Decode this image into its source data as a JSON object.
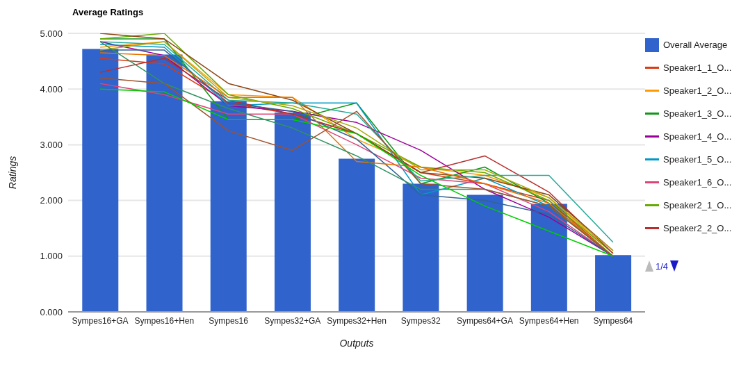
{
  "chart_data": {
    "type": "bar",
    "title": "Average Ratings",
    "xlabel": "Outputs",
    "ylabel": "Ratings",
    "categories": [
      "Sympes16+GA",
      "Sympes16+Hen",
      "Sympes16",
      "Sympes32+GA",
      "Sympes32+Hen",
      "Sympes32",
      "Sympes64+GA",
      "Sympes64+Hen",
      "Sympes64"
    ],
    "ylim": [
      0,
      5
    ],
    "yticks": [
      {
        "value": 0,
        "label": "0.000"
      },
      {
        "value": 1,
        "label": "1.000"
      },
      {
        "value": 2,
        "label": "2.000"
      },
      {
        "value": 3,
        "label": "3.000"
      },
      {
        "value": 4,
        "label": "4.000"
      },
      {
        "value": 5,
        "label": "5.000"
      }
    ],
    "grid": "y",
    "legend": "right",
    "annotations": [
      "1/4"
    ],
    "series": [
      {
        "name": "Overall Average",
        "color": "#3063cc",
        "values": [
          4.72,
          4.62,
          3.78,
          3.58,
          2.75,
          2.3,
          2.1,
          1.94,
          1.02
        ]
      },
      {
        "name": "Speaker1_1_O...",
        "type": "line",
        "color": "#dc3912",
        "values": [
          4.55,
          4.45,
          3.75,
          3.55,
          3.2,
          2.5,
          2.3,
          2.0,
          1.0
        ]
      },
      {
        "name": "Speaker1_2_O...",
        "type": "line",
        "color": "#ff9900",
        "values": [
          4.75,
          4.85,
          3.9,
          3.85,
          3.1,
          2.6,
          2.45,
          2.05,
          1.05
        ]
      },
      {
        "name": "Speaker1_3_O...",
        "type": "line",
        "color": "#109618",
        "values": [
          4.9,
          4.9,
          3.45,
          3.45,
          3.75,
          2.3,
          2.6,
          1.95,
          1.0
        ]
      },
      {
        "name": "Speaker1_4_O...",
        "type": "line",
        "color": "#990099",
        "values": [
          4.85,
          4.6,
          3.7,
          3.6,
          3.4,
          2.9,
          2.2,
          1.7,
          1.0
        ]
      },
      {
        "name": "Speaker1_5_O...",
        "type": "line",
        "color": "#0099c6",
        "values": [
          4.8,
          4.75,
          3.7,
          3.75,
          3.75,
          2.1,
          2.4,
          1.9,
          1.0
        ]
      },
      {
        "name": "Speaker1_6_O...",
        "type": "line",
        "color": "#dd4477",
        "values": [
          4.1,
          3.9,
          3.55,
          3.55,
          3.0,
          2.4,
          2.3,
          1.8,
          1.0
        ]
      },
      {
        "name": "Speaker2_1_O...",
        "type": "line",
        "color": "#66aa00",
        "values": [
          4.9,
          5.0,
          3.9,
          3.65,
          3.2,
          2.6,
          2.5,
          2.0,
          1.05
        ]
      },
      {
        "name": "Speaker2_2_O...",
        "type": "line",
        "color": "#b82e2e",
        "values": [
          4.3,
          4.55,
          3.8,
          3.55,
          3.2,
          2.5,
          2.8,
          2.15,
          1.05
        ]
      },
      {
        "type": "line",
        "color": "#8b4513",
        "values": [
          5.0,
          4.9,
          4.1,
          3.8,
          3.2,
          2.5,
          2.4,
          2.1,
          1.1
        ]
      },
      {
        "type": "line",
        "color": "#316395",
        "values": [
          4.7,
          4.7,
          3.75,
          3.6,
          3.1,
          2.1,
          2.0,
          1.75,
          1.0
        ]
      },
      {
        "type": "line",
        "color": "#22aa99",
        "values": [
          4.85,
          4.8,
          3.8,
          3.75,
          3.55,
          2.35,
          2.45,
          2.45,
          1.25
        ]
      },
      {
        "type": "line",
        "color": "#aaaa11",
        "values": [
          4.7,
          4.85,
          3.85,
          3.7,
          3.3,
          2.55,
          2.55,
          2.05,
          1.1
        ]
      },
      {
        "type": "line",
        "color": "#e67300",
        "values": [
          4.65,
          4.6,
          3.85,
          3.85,
          2.7,
          2.6,
          2.3,
          1.95,
          1.0
        ]
      },
      {
        "type": "line",
        "color": "#329262",
        "values": [
          4.85,
          4.1,
          3.65,
          3.3,
          2.8,
          2.2,
          2.2,
          1.9,
          1.0
        ]
      },
      {
        "type": "line",
        "color": "#a0522d",
        "values": [
          4.2,
          4.1,
          3.25,
          2.9,
          3.6,
          2.3,
          2.2,
          1.9,
          1.0
        ]
      },
      {
        "type": "line",
        "color": "#00cc00",
        "values": [
          4.0,
          3.95,
          3.45,
          3.45,
          3.2,
          2.45,
          1.9,
          1.45,
          1.0
        ]
      }
    ]
  }
}
